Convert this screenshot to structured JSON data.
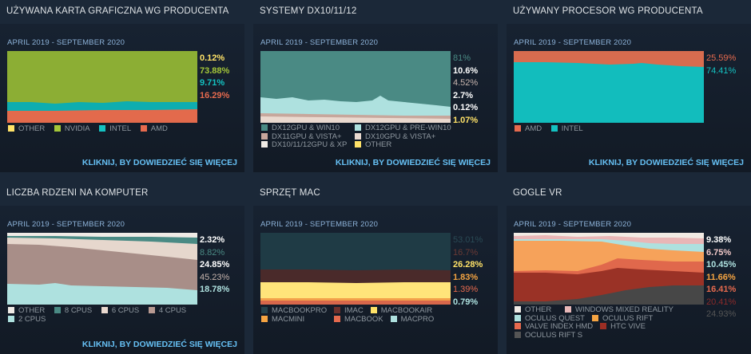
{
  "panels": [
    {
      "title": "UŻYWANA KARTA GRAFICZNA WG PRODUCENTA",
      "date": "APRIL 2019 - SEPTEMBER 2020",
      "more": "KLIKNIJ, BY DOWIEDZIEĆ SIĘ WIĘCEJ",
      "values": [
        {
          "text": "0.12%",
          "color": "#ffe268"
        },
        {
          "text": "73.88%",
          "color": "#a4c639"
        },
        {
          "text": "9.71%",
          "color": "#14c2c2"
        },
        {
          "text": "16.29%",
          "color": "#e66a4e"
        }
      ],
      "legend": [
        {
          "label": "OTHER",
          "color": "#ffe268"
        },
        {
          "label": "NVIDIA",
          "color": "#a4c639"
        },
        {
          "label": "INTEL",
          "color": "#14c2c2"
        },
        {
          "label": "AMD",
          "color": "#e66a4e"
        }
      ],
      "bands": [
        "#8cae34",
        "#0eadb0",
        "#e36a4c"
      ]
    },
    {
      "title": "SYSTEMY DX10/11/12",
      "date": "APRIL 2019 - SEPTEMBER 2020",
      "more": "KLIKNIJ, BY DOWIEDZIEĆ SIĘ WIĘCEJ",
      "values": [
        {
          "text": "81%",
          "color": "#4a8a84"
        },
        {
          "text": "10.6%",
          "color": "#ffffff"
        },
        {
          "text": "4.52%",
          "color": "#c7b4ae"
        },
        {
          "text": "2.7%",
          "color": "#ffffff"
        },
        {
          "text": "0.12%",
          "color": "#ffffff"
        },
        {
          "text": "1.07%",
          "color": "#ffe268"
        }
      ],
      "legend": [
        {
          "label": "DX12GPU & WIN10",
          "color": "#4a8a84"
        },
        {
          "label": "DX12GPU & PRE-WIN10",
          "color": "#aee1df"
        },
        {
          "label": "DX11GPU & VISTA+",
          "color": "#c7a79c"
        },
        {
          "label": "DX10GPU & VISTA+",
          "color": "#ead9cf"
        },
        {
          "label": "DX10/11/12GPU & XP",
          "color": "#f0ebe6"
        },
        {
          "label": "OTHER",
          "color": "#ffe268"
        }
      ],
      "bands": [
        "#4a8a84",
        "#aee1df",
        "#c7a79c",
        "#ead9cf"
      ]
    },
    {
      "title": "UŻYWANY PROCESOR WG PRODUCENTA",
      "date": "APRIL 2019 - SEPTEMBER 2020",
      "more": "KLIKNIJ, BY DOWIEDZIEĆ SIĘ WIĘCEJ",
      "values": [
        {
          "text": "25.59%",
          "color": "#e66a4e"
        },
        {
          "text": "74.41%",
          "color": "#14c2c2"
        }
      ],
      "legend": [
        {
          "label": "AMD",
          "color": "#e66a4e"
        },
        {
          "label": "INTEL",
          "color": "#14c2c2"
        }
      ],
      "bands": [
        "#d86c4f",
        "#12bdbd"
      ]
    },
    {
      "title": "LICZBA RDZENI NA KOMPUTER",
      "date": "APRIL 2019 - SEPTEMBER 2020",
      "more": "KLIKNIJ, BY DOWIEDZIEĆ SIĘ WIĘCEJ",
      "values": [
        {
          "text": "2.32%",
          "color": "#ffffff"
        },
        {
          "text": "8.82%",
          "color": "#4a8a84"
        },
        {
          "text": "24.85%",
          "color": "#ffffff"
        },
        {
          "text": "45.23%",
          "color": "#c7b4ae"
        },
        {
          "text": "18.78%",
          "color": "#aee1df"
        }
      ],
      "legend": [
        {
          "label": "OTHER",
          "color": "#f0ebe6"
        },
        {
          "label": "8 CPUS",
          "color": "#4a8a84"
        },
        {
          "label": "6 CPUS",
          "color": "#ead9cf"
        },
        {
          "label": "4 CPUS",
          "color": "#b89a92"
        },
        {
          "label": "2 CPUS",
          "color": "#aee1df"
        }
      ],
      "bands": [
        "#f0ebe6",
        "#4a8a84",
        "#e6d7cd",
        "#a88e88",
        "#aee1df"
      ]
    },
    {
      "title": "SPRZĘT MAC",
      "date": "APRIL 2019 - SEPTEMBER 2020",
      "more": "",
      "values": [
        {
          "text": "53.01%",
          "color": "#2a4a55"
        },
        {
          "text": "16.7%",
          "color": "#6a3a35"
        },
        {
          "text": "26.28%",
          "color": "#ffe268"
        },
        {
          "text": "1.83%",
          "color": "#f5a442"
        },
        {
          "text": "1.39%",
          "color": "#e66a4e"
        },
        {
          "text": "0.79%",
          "color": "#aee1df"
        }
      ],
      "legend": [
        {
          "label": "MACBOOKPRO",
          "color": "#25424c"
        },
        {
          "label": "IMAC",
          "color": "#6d302c"
        },
        {
          "label": "MACBOOKAIR",
          "color": "#ffe268"
        },
        {
          "label": "MACMINI",
          "color": "#f5a442"
        },
        {
          "label": "MACBOOK",
          "color": "#e66a4e"
        },
        {
          "label": "MACPRO",
          "color": "#aee1df"
        }
      ],
      "bands": [
        "#1f3b45",
        "#4a2a2a",
        "#ffe47a",
        "#f2a04a",
        "#d8674b"
      ]
    },
    {
      "title": "GOGLE VR",
      "date": "APRIL 2019 - SEPTEMBER 2020",
      "more": "",
      "values": [
        {
          "text": "9.38%",
          "color": "#ffffff"
        },
        {
          "text": "6.75%",
          "color": "#f0c8c8"
        },
        {
          "text": "10.45%",
          "color": "#aee1df"
        },
        {
          "text": "11.66%",
          "color": "#f5a442"
        },
        {
          "text": "16.41%",
          "color": "#e66a4e"
        },
        {
          "text": "20.41%",
          "color": "#8c2a2a"
        },
        {
          "text": "24.93%",
          "color": "#555555"
        }
      ],
      "legend": [
        {
          "label": "OTHER",
          "color": "#f0ebe6"
        },
        {
          "label": "WINDOWS MIXED REALITY",
          "color": "#e8b8b8"
        },
        {
          "label": "OCULUS QUEST",
          "color": "#aee1df"
        },
        {
          "label": "OCULUS RIFT",
          "color": "#f5a442"
        },
        {
          "label": "VALVE INDEX HMD",
          "color": "#e66a4e"
        },
        {
          "label": "HTC VIVE",
          "color": "#9c2e24"
        },
        {
          "label": "OCULUS RIFT S",
          "color": "#555555"
        }
      ],
      "bands": [
        "#f2ebe4",
        "#e9b6b6",
        "#aee1df",
        "#f6a25a",
        "#e0684c",
        "#9a3226",
        "#474747"
      ]
    }
  ]
}
